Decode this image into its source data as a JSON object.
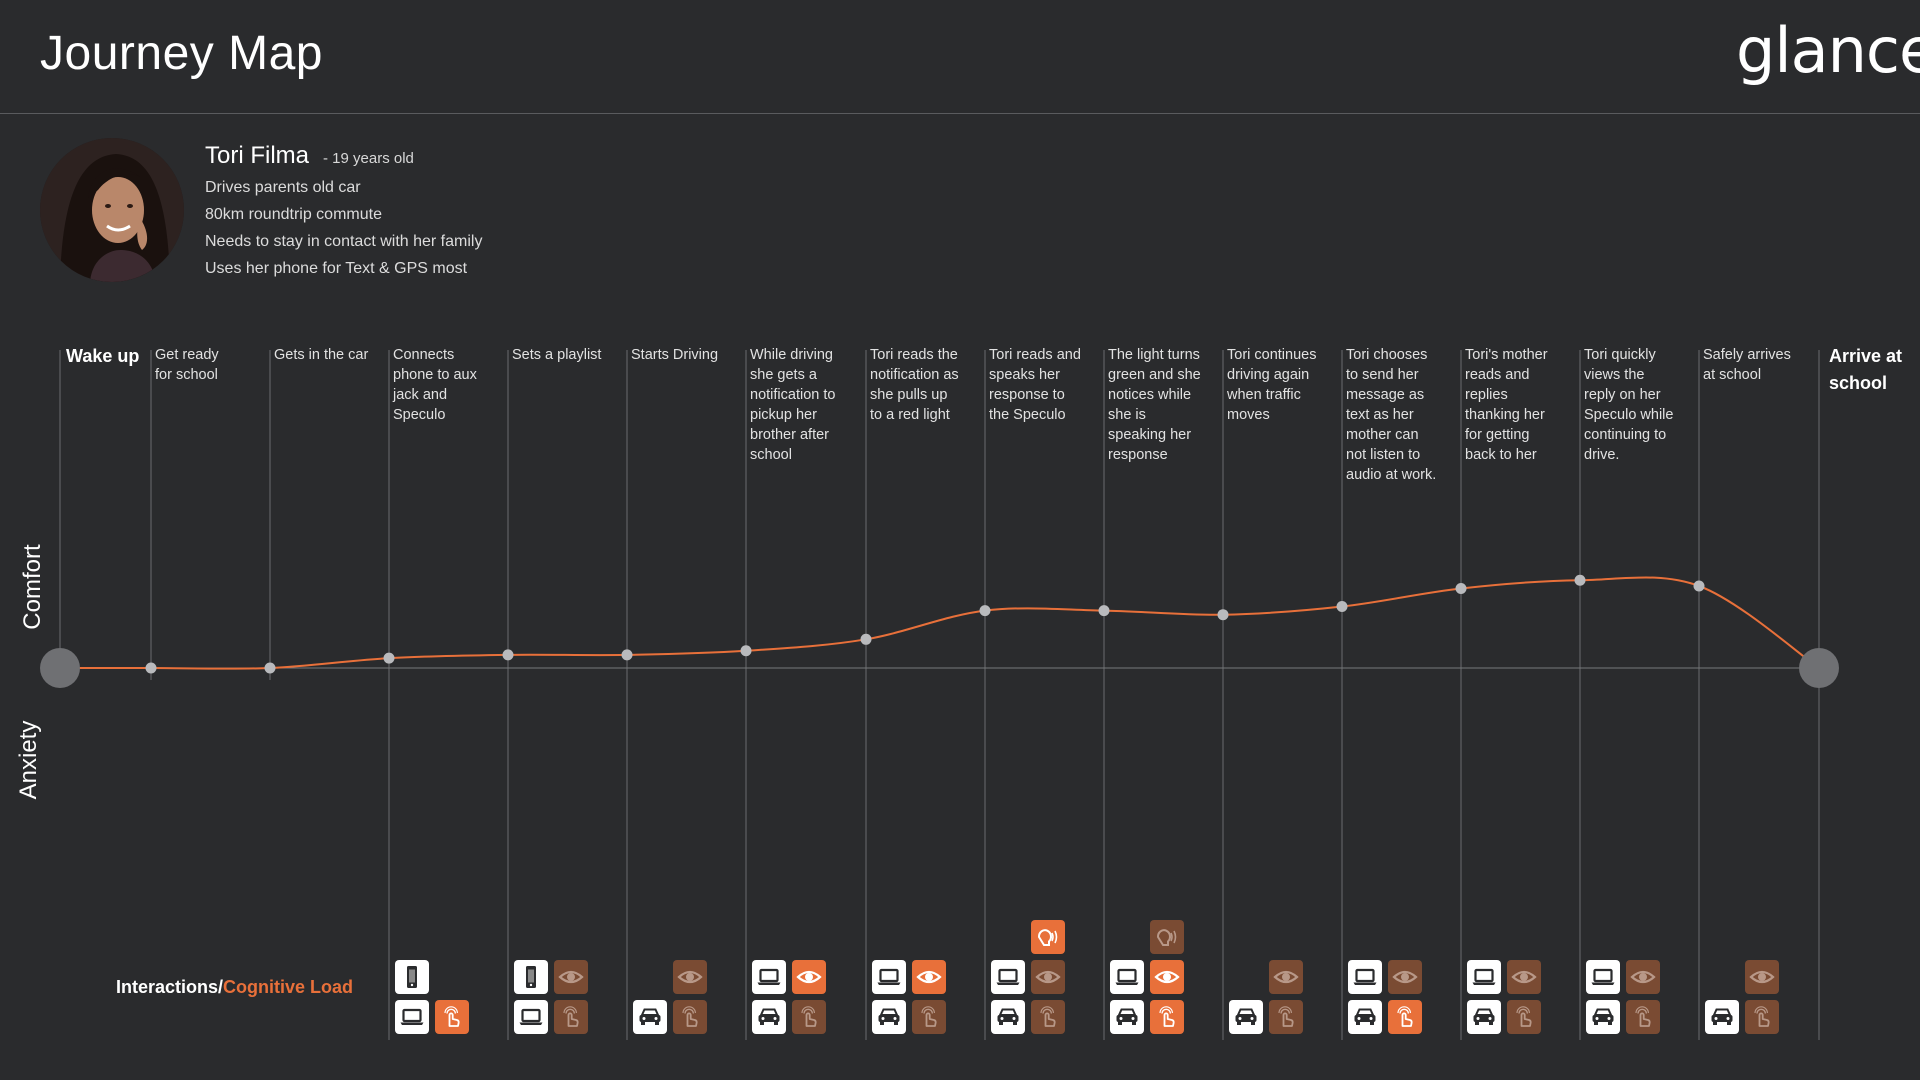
{
  "header": {
    "title": "Journey Map",
    "logo": "glance"
  },
  "persona": {
    "name": "Tori Filma",
    "age": "- 19 years old",
    "lines": [
      "Drives parents old car",
      "80km roundtrip commute",
      "Needs to stay in contact with her family",
      "Uses her phone for Text & GPS most"
    ]
  },
  "axes": {
    "comfort": "Comfort",
    "anxiety": "Anxiety"
  },
  "interactions_label": {
    "prefix": "Interactions/",
    "highlight": "Cognitive Load"
  },
  "colors": {
    "accent": "#e8703a",
    "muted": "#7a4b33",
    "background": "#2a2b2d",
    "icon_white": "#ffffff"
  },
  "chart_data": {
    "type": "line",
    "x": [
      "Wake up",
      "Get ready for school",
      "Gets in the car",
      "Connects phone to aux jack and Speculo",
      "Sets a playlist",
      "Starts Driving",
      "While driving she gets a notification to pickup her brother after school",
      "Tori reads the notification as she pulls up to a red light",
      "Tori reads and speaks her response to the Speculo",
      "The light turns green and she notices while she is speaking her response",
      "Tori continues driving again when traffic moves",
      "Tori chooses to send her message as text as her mother can not listen to audio at work.",
      "Tori's mother reads and replies thanking her for getting back to her",
      "Tori quickly views the reply on her Speculo while continuing to drive.",
      "Safely arrives at school",
      "Arrive at school"
    ],
    "series": [
      {
        "values": [
          0,
          0,
          0,
          0.12,
          0.16,
          0.16,
          0.21,
          0.35,
          0.7,
          0.7,
          0.65,
          0.75,
          0.97,
          1.07,
          1.0,
          0
        ]
      }
    ],
    "ylabel_top": "Comfort",
    "ylabel_bottom": "Anxiety",
    "grid": false
  },
  "steps": [
    {
      "label": "Wake up",
      "end": true
    },
    {
      "label": "Get ready\nfor school"
    },
    {
      "label": "Gets in the car"
    },
    {
      "label": "Connects\nphone to aux\njack and\nSpeculo"
    },
    {
      "label": "Sets a playlist"
    },
    {
      "label": "Starts Driving"
    },
    {
      "label": "While driving\nshe gets a\nnotification to\npickup her\nbrother after\nschool"
    },
    {
      "label": "Tori reads the\nnotification as\nshe pulls up\nto a red light"
    },
    {
      "label": "Tori reads and\nspeaks her\nresponse to\nthe Speculo"
    },
    {
      "label": "The light turns\ngreen and she\nnotices while\nshe is\nspeaking her\nresponse"
    },
    {
      "label": "Tori continues\ndriving again\nwhen traffic\nmoves"
    },
    {
      "label": "Tori chooses\nto send her\nmessage as\ntext as her\nmother can\nnot listen to\naudio at work."
    },
    {
      "label": "Tori's mother\nreads and\nreplies\nthanking her\nfor getting\nback to her"
    },
    {
      "label": "Tori quickly\nviews the\nreply on her\nSpeculo while\ncontinuing to\ndrive."
    },
    {
      "label": "Safely arrives\nat school"
    },
    {
      "label": "Arrive at\nschool",
      "end": true
    }
  ],
  "interactions": [
    {
      "step": 3,
      "top": [],
      "mid": [
        "phone-white"
      ],
      "bottom": [
        "laptop-white",
        "touch-orange"
      ]
    },
    {
      "step": 4,
      "top": [],
      "mid": [
        "phone-white",
        "eye-brown"
      ],
      "bottom": [
        "laptop-white",
        "touch-brown"
      ]
    },
    {
      "step": 5,
      "top": [],
      "mid": [
        "none",
        "eye-brown"
      ],
      "bottom": [
        "car-white",
        "touch-brown"
      ]
    },
    {
      "step": 6,
      "top": [],
      "mid": [
        "laptop-white",
        "eye-orange"
      ],
      "bottom": [
        "car-white",
        "touch-brown"
      ]
    },
    {
      "step": 7,
      "top": [],
      "mid": [
        "laptop-white",
        "eye-orange"
      ],
      "bottom": [
        "car-white",
        "touch-brown"
      ]
    },
    {
      "step": 8,
      "top": [
        "none",
        "voice-orange"
      ],
      "mid": [
        "laptop-white",
        "eye-brown"
      ],
      "bottom": [
        "car-white",
        "touch-brown"
      ]
    },
    {
      "step": 9,
      "top": [
        "none",
        "voice-brown"
      ],
      "mid": [
        "laptop-white",
        "eye-orange"
      ],
      "bottom": [
        "car-white",
        "touch-orange"
      ]
    },
    {
      "step": 10,
      "top": [],
      "mid": [
        "none",
        "eye-brown"
      ],
      "bottom": [
        "car-white",
        "touch-brown"
      ]
    },
    {
      "step": 11,
      "top": [],
      "mid": [
        "laptop-white",
        "eye-brown"
      ],
      "bottom": [
        "car-white",
        "touch-orange"
      ]
    },
    {
      "step": 12,
      "top": [],
      "mid": [
        "laptop-white",
        "eye-brown"
      ],
      "bottom": [
        "car-white",
        "touch-brown"
      ]
    },
    {
      "step": 13,
      "top": [],
      "mid": [
        "laptop-white",
        "eye-brown"
      ],
      "bottom": [
        "car-white",
        "touch-brown"
      ]
    },
    {
      "step": 14,
      "top": [],
      "mid": [
        "none",
        "eye-brown"
      ],
      "bottom": [
        "car-white",
        "touch-brown"
      ]
    }
  ]
}
